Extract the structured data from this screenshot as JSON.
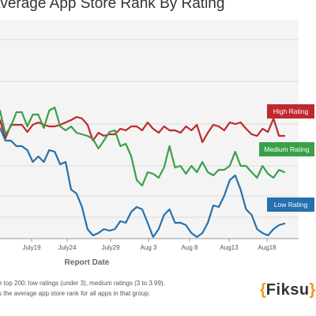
{
  "chart_data": {
    "type": "line",
    "title": "Average App Store Rank By Rating",
    "xlabel": "Report Date",
    "ylabel": "",
    "x_tick_labels": [
      "July19",
      "July24",
      "July29",
      "Aug 3",
      "Aug 8",
      "Aug13",
      "Aug18"
    ],
    "grid": true,
    "legend_placement": "right, labels at line ends",
    "series": [
      {
        "name": "High Rating",
        "color": "#c0282d",
        "values": [
          152,
          175,
          158,
          158,
          158,
          167,
          158,
          155,
          158,
          160,
          160,
          158,
          155,
          152,
          148,
          150,
          158,
          178,
          168,
          172,
          170,
          170,
          163,
          165,
          160,
          160,
          165,
          155,
          163,
          168,
          160,
          165,
          165,
          168,
          160,
          165,
          158,
          180,
          168,
          158,
          160,
          165,
          155,
          157,
          155,
          163,
          170,
          172,
          163,
          167,
          150,
          172,
          172
        ]
      },
      {
        "name": "Medium Rating",
        "color": "#3aa048",
        "values": [
          140,
          170,
          160,
          142,
          142,
          160,
          145,
          145,
          162,
          140,
          136,
          160,
          165,
          160,
          168,
          170,
          172,
          176,
          188,
          178,
          167,
          165,
          185,
          182,
          198,
          228,
          235,
          218,
          220,
          225,
          212,
          185,
          212,
          210,
          220,
          210,
          218,
          205,
          218,
          222,
          215,
          215,
          210,
          192,
          210,
          210,
          218,
          225,
          210,
          220,
          225,
          215,
          218
        ]
      },
      {
        "name": "Low Rating",
        "color": "#2670ad",
        "values": [
          162,
          178,
          178,
          185,
          185,
          190,
          205,
          198,
          205,
          190,
          192,
          208,
          205,
          240,
          245,
          262,
          290,
          298,
          295,
          290,
          292,
          290,
          280,
          282,
          268,
          262,
          265,
          282,
          300,
          290,
          272,
          265,
          282,
          282,
          285,
          295,
          300,
          295,
          282,
          260,
          262,
          248,
          228,
          222,
          240,
          265,
          272,
          290,
          295,
          298,
          290,
          285,
          283
        ]
      }
    ]
  },
  "footnote": {
    "line1": "e top 200: low ratings (under 3), medium ratings (3 to 3.99),",
    "line2": "s the average app store rank for all apps in that group."
  },
  "logo": {
    "open": "{",
    "word": "Fiksu",
    "close": "}"
  }
}
